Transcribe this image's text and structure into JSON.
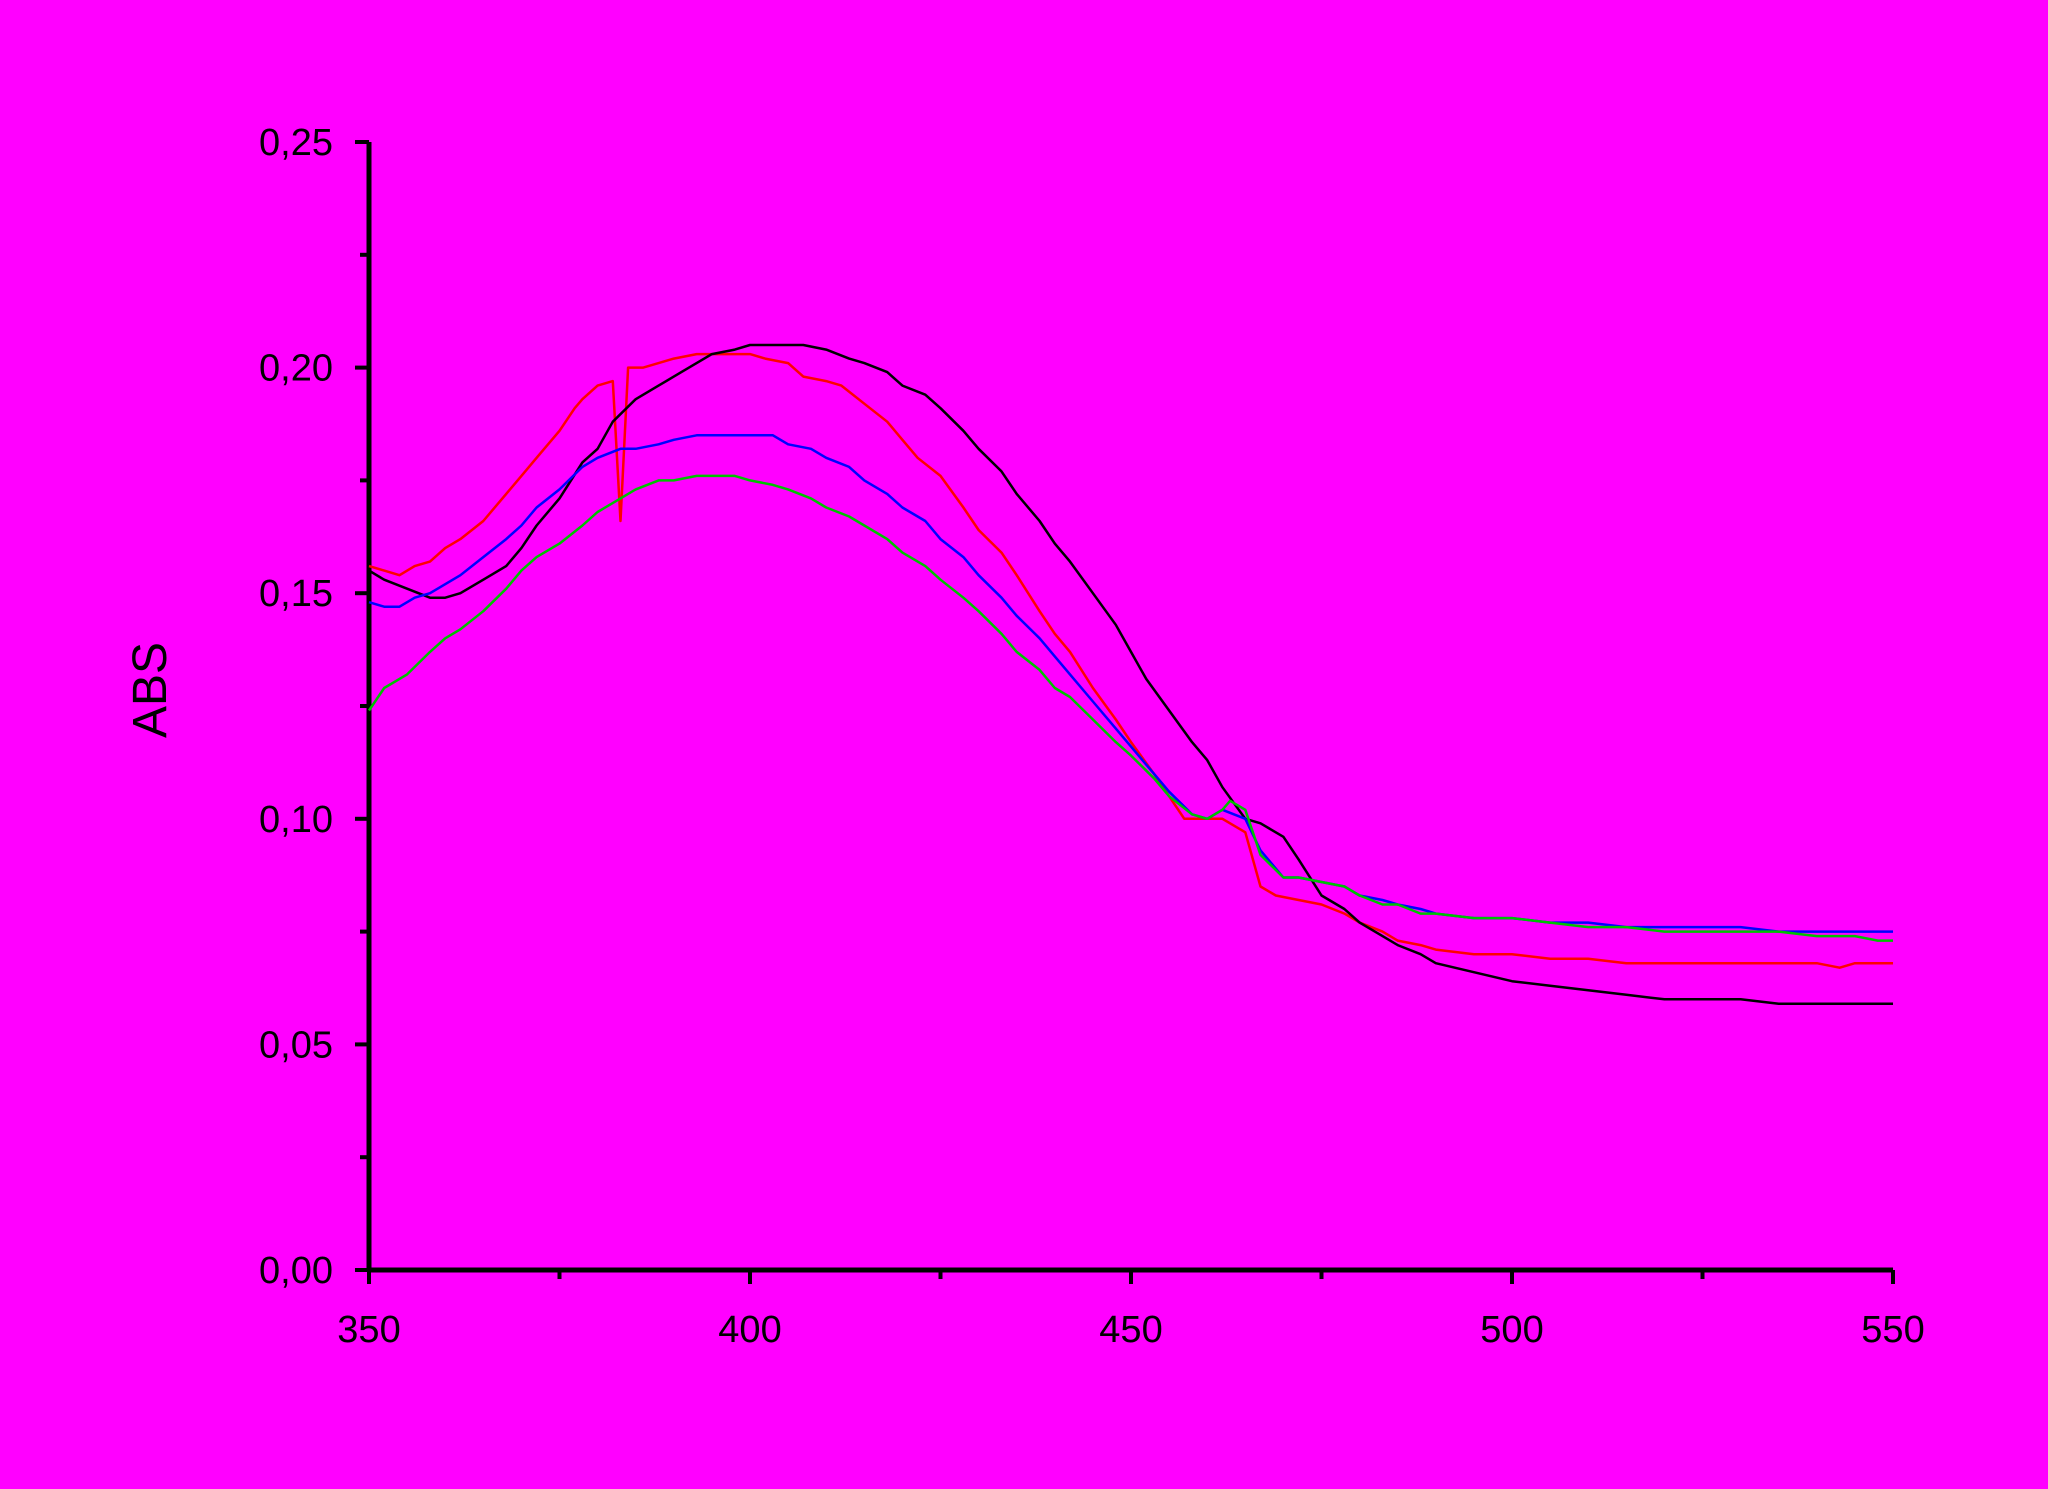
{
  "chart_data": {
    "type": "line",
    "title": "",
    "xlabel": "",
    "ylabel": "ABS",
    "xlim": [
      350,
      550
    ],
    "ylim": [
      0.0,
      0.25
    ],
    "grid": false,
    "legend": "none",
    "x_ticks": [
      350,
      400,
      450,
      500,
      550
    ],
    "x_tick_labels": [
      "350",
      "400",
      "450",
      "500",
      "550"
    ],
    "y_ticks": [
      0.0,
      0.05,
      0.1,
      0.15,
      0.2,
      0.25
    ],
    "y_tick_labels": [
      "0,00",
      "0,05",
      "0,10",
      "0,15",
      "0,20",
      "0,25"
    ],
    "x_minor_ticks": [
      375,
      425,
      475,
      525
    ],
    "y_minor_ticks": [
      0.025,
      0.075,
      0.125,
      0.175,
      0.225
    ],
    "colors": {
      "background": "#ff00ff",
      "axis": "#000000"
    },
    "series": [
      {
        "color": "#ff0000",
        "x": [
          350,
          352,
          354,
          356,
          358,
          360,
          362,
          365,
          368,
          370,
          372,
          375,
          377,
          378,
          380,
          382,
          383,
          384,
          386,
          388,
          390,
          393,
          395,
          398,
          400,
          402,
          405,
          407,
          410,
          412,
          415,
          418,
          420,
          422,
          425,
          428,
          430,
          433,
          435,
          438,
          440,
          442,
          445,
          448,
          450,
          453,
          455,
          457,
          460,
          462,
          465,
          467,
          469,
          472,
          475,
          478,
          480,
          483,
          485,
          488,
          490,
          495,
          500,
          505,
          510,
          515,
          520,
          525,
          530,
          535,
          540,
          543,
          545,
          550
        ],
        "y": [
          0.156,
          0.155,
          0.154,
          0.156,
          0.157,
          0.16,
          0.162,
          0.166,
          0.172,
          0.176,
          0.18,
          0.186,
          0.191,
          0.193,
          0.196,
          0.197,
          0.166,
          0.2,
          0.2,
          0.201,
          0.202,
          0.203,
          0.203,
          0.203,
          0.203,
          0.202,
          0.201,
          0.198,
          0.197,
          0.196,
          0.192,
          0.188,
          0.184,
          0.18,
          0.176,
          0.169,
          0.164,
          0.159,
          0.154,
          0.146,
          0.141,
          0.137,
          0.129,
          0.122,
          0.117,
          0.11,
          0.105,
          0.1,
          0.1,
          0.1,
          0.097,
          0.085,
          0.083,
          0.082,
          0.081,
          0.079,
          0.077,
          0.075,
          0.073,
          0.072,
          0.071,
          0.07,
          0.07,
          0.069,
          0.069,
          0.068,
          0.068,
          0.068,
          0.068,
          0.068,
          0.068,
          0.067,
          0.068,
          0.068
        ]
      },
      {
        "color": "#000000",
        "x": [
          350,
          352,
          355,
          358,
          360,
          362,
          365,
          368,
          370,
          372,
          375,
          378,
          380,
          382,
          385,
          388,
          390,
          392,
          395,
          398,
          400,
          402,
          405,
          407,
          410,
          413,
          415,
          418,
          420,
          423,
          425,
          428,
          430,
          433,
          435,
          438,
          440,
          442,
          445,
          448,
          450,
          452,
          455,
          458,
          460,
          462,
          465,
          467,
          470,
          472,
          475,
          478,
          480,
          483,
          485,
          488,
          490,
          495,
          500,
          505,
          510,
          515,
          520,
          525,
          530,
          535,
          540,
          545,
          550
        ],
        "y": [
          0.155,
          0.153,
          0.151,
          0.149,
          0.149,
          0.15,
          0.153,
          0.156,
          0.16,
          0.165,
          0.171,
          0.179,
          0.182,
          0.188,
          0.193,
          0.196,
          0.198,
          0.2,
          0.203,
          0.204,
          0.205,
          0.205,
          0.205,
          0.205,
          0.204,
          0.202,
          0.201,
          0.199,
          0.196,
          0.194,
          0.191,
          0.186,
          0.182,
          0.177,
          0.172,
          0.166,
          0.161,
          0.157,
          0.15,
          0.143,
          0.137,
          0.131,
          0.124,
          0.117,
          0.113,
          0.107,
          0.1,
          0.099,
          0.096,
          0.091,
          0.083,
          0.08,
          0.077,
          0.074,
          0.072,
          0.07,
          0.068,
          0.066,
          0.064,
          0.063,
          0.062,
          0.061,
          0.06,
          0.06,
          0.06,
          0.059,
          0.059,
          0.059,
          0.059
        ]
      },
      {
        "color": "#0000ff",
        "x": [
          350,
          352,
          354,
          356,
          358,
          360,
          362,
          365,
          368,
          370,
          372,
          375,
          378,
          380,
          383,
          385,
          388,
          390,
          393,
          395,
          398,
          400,
          403,
          405,
          408,
          410,
          413,
          415,
          418,
          420,
          423,
          425,
          428,
          430,
          433,
          435,
          438,
          440,
          442,
          445,
          448,
          450,
          453,
          455,
          458,
          460,
          462,
          465,
          467,
          470,
          472,
          475,
          478,
          480,
          483,
          485,
          488,
          490,
          495,
          500,
          505,
          510,
          515,
          520,
          525,
          530,
          535,
          540,
          545,
          550
        ],
        "y": [
          0.148,
          0.147,
          0.147,
          0.149,
          0.15,
          0.152,
          0.154,
          0.158,
          0.162,
          0.165,
          0.169,
          0.173,
          0.178,
          0.18,
          0.182,
          0.182,
          0.183,
          0.184,
          0.185,
          0.185,
          0.185,
          0.185,
          0.185,
          0.183,
          0.182,
          0.18,
          0.178,
          0.175,
          0.172,
          0.169,
          0.166,
          0.162,
          0.158,
          0.154,
          0.149,
          0.145,
          0.14,
          0.136,
          0.132,
          0.126,
          0.12,
          0.116,
          0.11,
          0.106,
          0.101,
          0.1,
          0.102,
          0.1,
          0.093,
          0.087,
          0.087,
          0.086,
          0.085,
          0.083,
          0.082,
          0.081,
          0.08,
          0.079,
          0.078,
          0.078,
          0.077,
          0.077,
          0.076,
          0.076,
          0.076,
          0.076,
          0.075,
          0.075,
          0.075,
          0.075
        ]
      },
      {
        "color": "#00c000",
        "x": [
          350,
          352,
          355,
          358,
          360,
          362,
          365,
          368,
          370,
          372,
          375,
          378,
          380,
          383,
          385,
          388,
          390,
          393,
          395,
          398,
          400,
          403,
          405,
          408,
          410,
          413,
          415,
          418,
          420,
          423,
          425,
          428,
          430,
          433,
          435,
          438,
          440,
          442,
          445,
          448,
          450,
          453,
          455,
          458,
          460,
          462,
          463,
          465,
          467,
          470,
          472,
          475,
          478,
          480,
          483,
          485,
          488,
          490,
          495,
          500,
          505,
          510,
          515,
          520,
          525,
          530,
          535,
          540,
          545,
          548,
          550
        ],
        "y": [
          0.124,
          0.129,
          0.132,
          0.137,
          0.14,
          0.142,
          0.146,
          0.151,
          0.155,
          0.158,
          0.161,
          0.165,
          0.168,
          0.171,
          0.173,
          0.175,
          0.175,
          0.176,
          0.176,
          0.176,
          0.175,
          0.174,
          0.173,
          0.171,
          0.169,
          0.167,
          0.165,
          0.162,
          0.159,
          0.156,
          0.153,
          0.149,
          0.146,
          0.141,
          0.137,
          0.133,
          0.129,
          0.127,
          0.122,
          0.117,
          0.114,
          0.109,
          0.105,
          0.101,
          0.1,
          0.102,
          0.104,
          0.102,
          0.092,
          0.087,
          0.087,
          0.086,
          0.085,
          0.083,
          0.081,
          0.081,
          0.079,
          0.079,
          0.078,
          0.078,
          0.077,
          0.076,
          0.076,
          0.075,
          0.075,
          0.075,
          0.075,
          0.074,
          0.074,
          0.073,
          0.073
        ]
      }
    ]
  }
}
